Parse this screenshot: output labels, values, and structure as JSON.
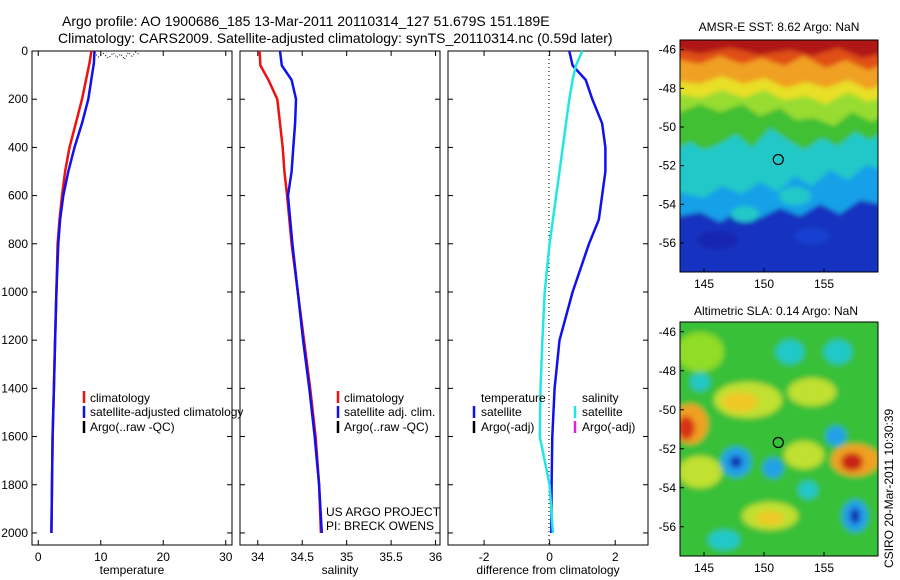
{
  "header": {
    "line1": "Argo profile: AO 1900686_185 13-Mar-2011 20110314_127 51.679S 151.189E",
    "line2": "Climatology: CARS2009. Satellite-adjusted climatology: synTS_20110314.nc (0.59d later)"
  },
  "credit": {
    "project": "US ARGO PROJECT",
    "pi": "PI: BRECK OWENS"
  },
  "stamp": "CSIRO 20-Mar-2011 10:30:39",
  "colors": {
    "red": "#ee1111",
    "blue": "#1111ee",
    "cyan": "#22e6e6",
    "black": "#000000",
    "magenta": "#dd22dd"
  },
  "chart_data": [
    {
      "type": "line",
      "xlabel": "temperature",
      "ylabel": "",
      "xlim": [
        -1,
        31
      ],
      "ylim": [
        2050,
        0
      ],
      "y_reversed": true,
      "xticks": [
        "0",
        "10",
        "20",
        "30"
      ],
      "yticks": [
        "0",
        "200",
        "400",
        "600",
        "800",
        "1000",
        "1200",
        "1400",
        "1600",
        "1800",
        "2000"
      ],
      "legend": [
        "climatology",
        "satellite-adjusted climatology",
        "Argo(..raw -QC)"
      ],
      "series": [
        {
          "name": "climatology",
          "color": "red",
          "x": [
            8.5,
            8.2,
            7.8,
            7.0,
            6.0,
            5.0,
            4.3,
            3.8,
            3.4,
            3.1,
            2.9,
            2.7,
            2.5,
            2.3,
            2.2,
            2.1
          ],
          "y": [
            0,
            50,
            100,
            200,
            300,
            400,
            500,
            600,
            700,
            800,
            1000,
            1200,
            1400,
            1600,
            1800,
            2000
          ]
        },
        {
          "name": "satellite-adjusted climatology",
          "color": "blue",
          "x": [
            9.0,
            8.9,
            8.6,
            8.0,
            7.0,
            5.8,
            4.8,
            4.0,
            3.5,
            3.2,
            2.9,
            2.7,
            2.5,
            2.3,
            2.2,
            2.1
          ],
          "y": [
            0,
            50,
            100,
            200,
            300,
            400,
            500,
            600,
            700,
            800,
            1000,
            1200,
            1400,
            1600,
            1800,
            2000
          ]
        },
        {
          "name": "Argo(..raw -QC)",
          "color": "black",
          "dotted": true,
          "x": [
            9.0,
            9.6,
            10.4,
            11.2,
            12.0,
            12.6,
            13.2,
            13.8,
            14.4,
            15.0,
            15.6,
            16.2
          ],
          "y": [
            5,
            25,
            10,
            30,
            8,
            28,
            12,
            35,
            6,
            22,
            4,
            15
          ]
        }
      ]
    },
    {
      "type": "line",
      "xlabel": "salinity",
      "ylabel": "",
      "xlim": [
        33.8,
        36.05
      ],
      "ylim": [
        2050,
        0
      ],
      "y_reversed": true,
      "xticks": [
        "34",
        "34.5",
        "35",
        "35.5",
        "36"
      ],
      "yticks": [],
      "legend": [
        "climatology",
        "satellite adj. clim.",
        "Argo(..raw -QC)"
      ],
      "series": [
        {
          "name": "climatology",
          "color": "red",
          "x": [
            34.02,
            34.03,
            34.12,
            34.22,
            34.25,
            34.28,
            34.3,
            34.33,
            34.38,
            34.45,
            34.52,
            34.59,
            34.65,
            34.69,
            34.71
          ],
          "y": [
            0,
            60,
            120,
            200,
            300,
            400,
            500,
            600,
            800,
            1000,
            1200,
            1400,
            1600,
            1800,
            2000
          ]
        },
        {
          "name": "satellite adj. clim.",
          "color": "blue",
          "x": [
            34.25,
            34.27,
            34.38,
            34.43,
            34.42,
            34.4,
            34.38,
            34.34,
            34.39,
            34.45,
            34.51,
            34.58,
            34.64,
            34.69,
            34.72
          ],
          "y": [
            0,
            60,
            120,
            200,
            300,
            400,
            500,
            600,
            800,
            1000,
            1200,
            1400,
            1600,
            1800,
            2000
          ]
        }
      ]
    },
    {
      "type": "line",
      "xlabel": "difference from climatology",
      "ylabel": "",
      "xlim": [
        -3.1,
        3.0
      ],
      "ylim": [
        2050,
        0
      ],
      "y_reversed": true,
      "xticks": [
        "-2",
        "0",
        "2"
      ],
      "yticks": [],
      "legend_headers": [
        "temperature",
        "salinity"
      ],
      "legend_left": [
        "satellite",
        "Argo(-adj)"
      ],
      "legend_right": [
        "satellite",
        "Argo(-adj)"
      ],
      "series": [
        {
          "name": "temperature satellite",
          "color": "blue",
          "x": [
            0.6,
            0.7,
            1.1,
            1.3,
            1.6,
            1.7,
            1.7,
            1.6,
            1.5,
            1.2,
            0.7,
            0.3,
            0.15,
            0.08,
            0.06,
            0.05
          ],
          "y": [
            0,
            60,
            120,
            200,
            300,
            400,
            500,
            600,
            700,
            800,
            1000,
            1200,
            1400,
            1600,
            1800,
            2000
          ]
        },
        {
          "name": "salinity satellite",
          "color": "cyan",
          "x": [
            1.0,
            0.8,
            0.7,
            0.6,
            0.5,
            0.4,
            0.3,
            0.2,
            0.1,
            0.0,
            -0.15,
            -0.22,
            -0.28,
            -0.3,
            -0.15,
            0.0,
            0.1
          ],
          "y": [
            0,
            60,
            120,
            200,
            300,
            400,
            500,
            600,
            700,
            800,
            1000,
            1200,
            1400,
            1600,
            1700,
            1800,
            2000
          ]
        }
      ]
    },
    {
      "type": "heatmap",
      "title": "AMSR-E SST: 8.62  Argo: NaN",
      "xlim": [
        143,
        159.5
      ],
      "ylim": [
        -57.5,
        -45.5
      ],
      "xticks": [
        "145",
        "150",
        "155"
      ],
      "yticks": [
        "-46",
        "-48",
        "-50",
        "-52",
        "-54",
        "-56"
      ],
      "marker": {
        "x": 151.19,
        "y": -51.68
      }
    },
    {
      "type": "heatmap",
      "title": "Altimetric SLA: 0.14  Argo: NaN",
      "xlim": [
        143,
        159.5
      ],
      "ylim": [
        -57.5,
        -45.5
      ],
      "xticks": [
        "145",
        "150",
        "155"
      ],
      "yticks": [
        "-46",
        "-48",
        "-50",
        "-52",
        "-54",
        "-56"
      ],
      "marker": {
        "x": 151.19,
        "y": -51.68
      }
    }
  ]
}
